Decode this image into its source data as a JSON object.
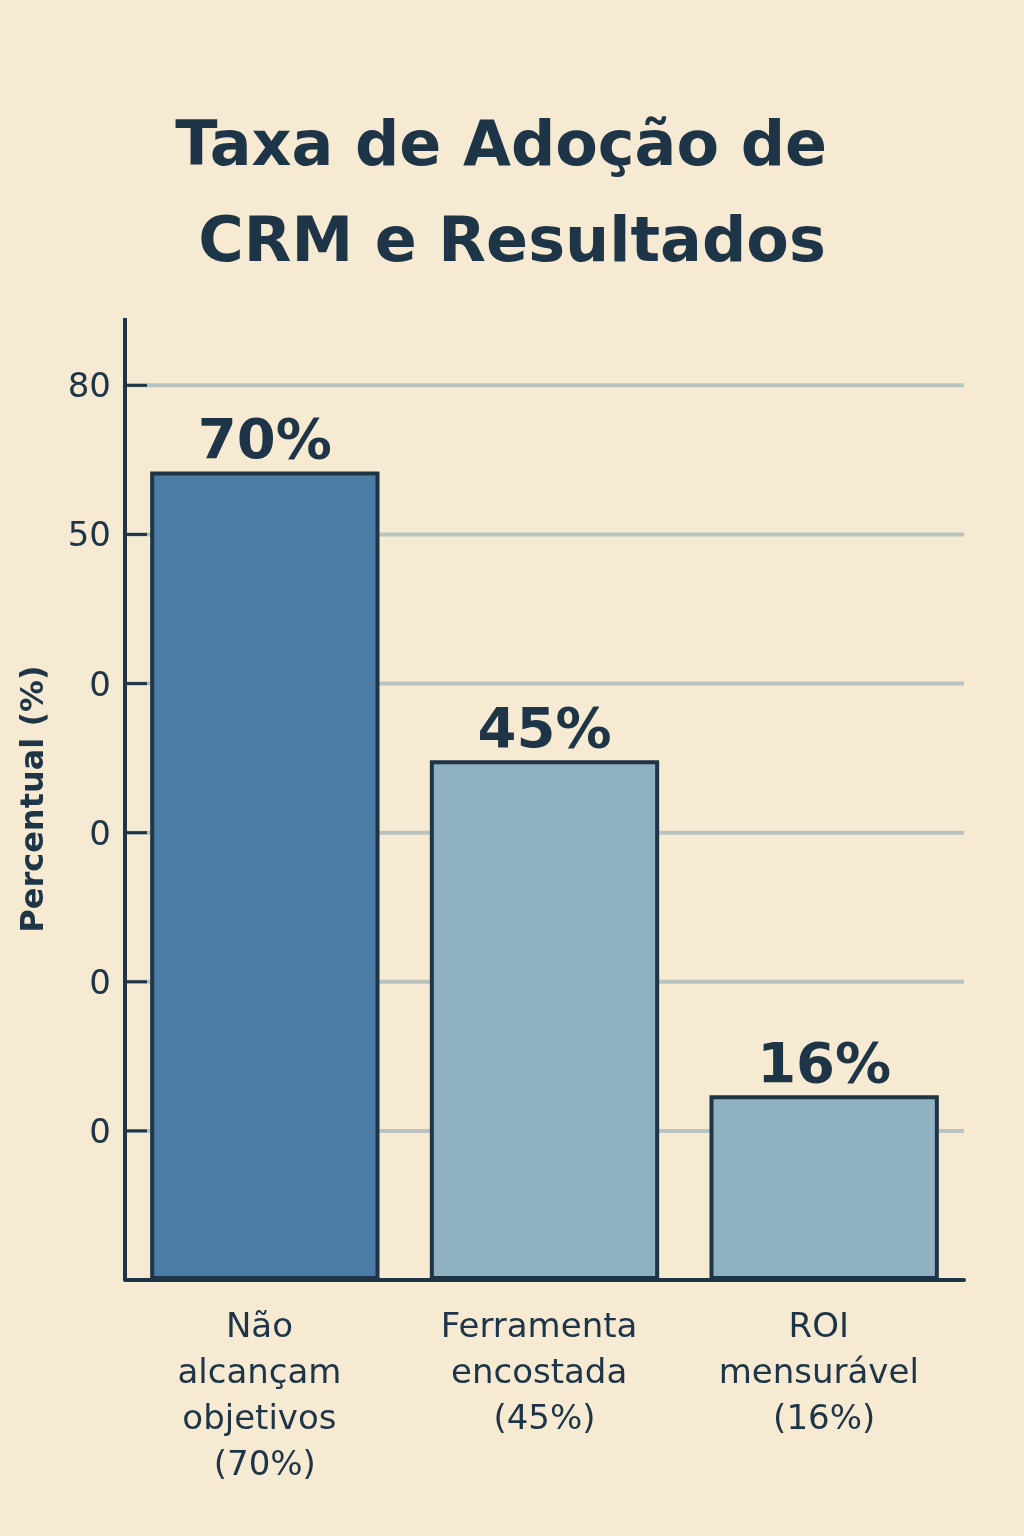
{
  "chart_data": {
    "type": "bar",
    "title": "Taxa de Adoção de CRM e Resultados",
    "ylabel": "Percentual (%)",
    "categories": [
      "Não alcançam objetivos (70%)",
      "Ferramenta encostada (45%)",
      "ROI mensurável (16%)"
    ],
    "values": [
      70,
      45,
      16
    ],
    "value_labels": [
      "70%",
      "45%",
      "16%"
    ],
    "colors": [
      "#4a7ca5",
      "#8fb1c2",
      "#8fb1c2"
    ],
    "annotations": [
      "80",
      "50",
      "0",
      "0",
      "0",
      "0"
    ],
    "grid": "y"
  }
}
